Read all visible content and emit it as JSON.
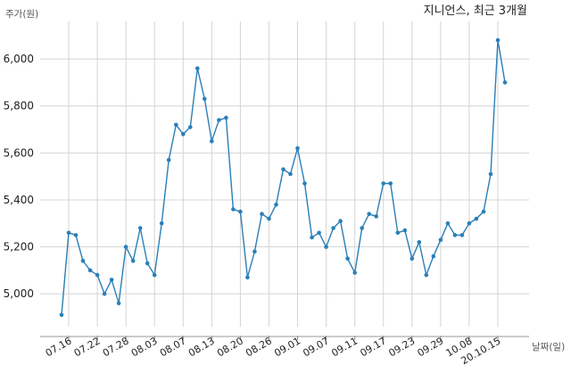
{
  "chart_data": {
    "type": "line",
    "title": "지니언스, 최근 3개월",
    "ylabel": "주가(원)",
    "xlabel": "날짜(일)",
    "ylim": [
      4860,
      6160
    ],
    "yticks": [
      5000,
      5200,
      5400,
      5600,
      5800,
      6000
    ],
    "ytick_labels": [
      "5,000",
      "5,200",
      "5,400",
      "5,600",
      "5,800",
      "6,000"
    ],
    "xtick_labels": [
      "07.16",
      "07.22",
      "07.28",
      "08.03",
      "08.07",
      "08.13",
      "08.20",
      "08.26",
      "09.01",
      "09.07",
      "09.11",
      "09.17",
      "09.23",
      "09.29",
      "10.08",
      "20.10.15"
    ],
    "xtick_index": [
      1,
      5,
      9,
      13,
      17,
      21,
      25,
      29,
      33,
      37,
      41,
      45,
      49,
      53,
      57,
      61
    ],
    "grid": true,
    "series": [
      {
        "values": [
          4910,
          5260,
          5250,
          5140,
          5100,
          5080,
          5000,
          5060,
          4960,
          5200,
          5140,
          5280,
          5130,
          5080,
          5300,
          5570,
          5720,
          5680,
          5710,
          5960,
          5830,
          5650,
          5740,
          5750,
          5360,
          5350,
          5070,
          5180,
          5340,
          5320,
          5380,
          5530,
          5510,
          5620,
          5470,
          5240,
          5260,
          5200,
          5280,
          5310,
          5150,
          5090,
          5280,
          5340,
          5330,
          5470,
          5470,
          5260,
          5270,
          5150,
          5220,
          5080,
          5160,
          5230,
          5300,
          5250,
          5250,
          5300,
          5320,
          5350,
          5510,
          6080,
          5900
        ],
        "color": "#2a7fb8"
      }
    ]
  }
}
